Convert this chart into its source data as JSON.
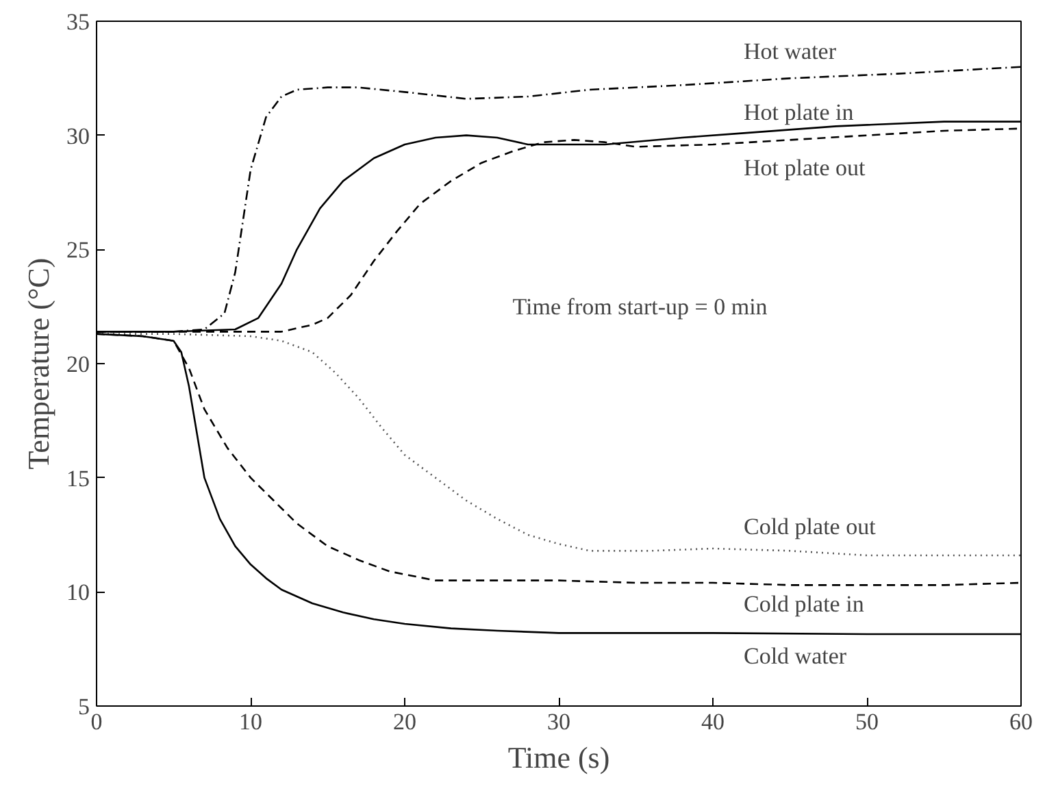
{
  "chart_data": {
    "type": "line",
    "xlabel": "Time (s)",
    "ylabel": "Temperature (°C)",
    "xlim": [
      0,
      60
    ],
    "ylim": [
      5,
      35
    ],
    "xticks": [
      0,
      10,
      20,
      30,
      40,
      50,
      60
    ],
    "yticks": [
      5,
      10,
      15,
      20,
      25,
      30,
      35
    ],
    "grid": false,
    "legend": false,
    "annotations": [
      "Time from start-up = 0 min"
    ],
    "series": [
      {
        "name": "Hot water",
        "color": "#000000",
        "line_style": "dashdot",
        "x": [
          0,
          5,
          7,
          8.3,
          9,
          10,
          11,
          12,
          13,
          15,
          17,
          20,
          24,
          28,
          32,
          38,
          45,
          52,
          60
        ],
        "values": [
          21.4,
          21.4,
          21.5,
          22.2,
          24,
          28.5,
          30.8,
          31.7,
          32,
          32.1,
          32.1,
          31.9,
          31.6,
          31.7,
          32,
          32.2,
          32.5,
          32.7,
          33
        ]
      },
      {
        "name": "Hot plate in",
        "color": "#000000",
        "line_style": "solid",
        "x": [
          0,
          5,
          9,
          10.5,
          12,
          13,
          14.5,
          16,
          18,
          20,
          22,
          24,
          26,
          28,
          33,
          38,
          42,
          48,
          55,
          60
        ],
        "values": [
          21.4,
          21.4,
          21.5,
          22,
          23.5,
          25,
          26.8,
          28,
          29,
          29.6,
          29.9,
          30,
          29.9,
          29.6,
          29.6,
          29.9,
          30.1,
          30.4,
          30.6,
          30.6
        ]
      },
      {
        "name": "Hot plate out",
        "color": "#000000",
        "line_style": "dashed",
        "x": [
          0,
          5,
          12,
          14,
          15,
          16.5,
          18,
          19.5,
          21,
          23,
          25,
          27,
          29,
          31,
          33,
          35,
          40,
          45,
          50,
          55,
          60
        ],
        "values": [
          21.4,
          21.4,
          21.4,
          21.7,
          22,
          23,
          24.5,
          25.8,
          27,
          28,
          28.8,
          29.3,
          29.7,
          29.8,
          29.7,
          29.5,
          29.6,
          29.8,
          30,
          30.2,
          30.3
        ]
      },
      {
        "name": "Cold plate out",
        "color": "#555555",
        "line_style": "dotted",
        "x": [
          0,
          5,
          10,
          12,
          14,
          15.5,
          17,
          18.5,
          20,
          22,
          24,
          26,
          28,
          30,
          32,
          36,
          40,
          45,
          50,
          55,
          60
        ],
        "values": [
          21.3,
          21.3,
          21.2,
          21,
          20.5,
          19.6,
          18.5,
          17.2,
          16,
          15,
          14,
          13.2,
          12.5,
          12.1,
          11.8,
          11.8,
          11.9,
          11.8,
          11.6,
          11.6,
          11.6
        ]
      },
      {
        "name": "Cold plate in",
        "color": "#000000",
        "line_style": "dashed",
        "x": [
          0,
          3,
          5,
          6,
          7,
          8.5,
          10,
          11.5,
          13,
          15,
          17,
          19,
          22,
          26,
          30,
          35,
          40,
          45,
          50,
          55,
          60
        ],
        "values": [
          21.3,
          21.2,
          21,
          19.8,
          18,
          16.3,
          15,
          14,
          13,
          12,
          11.4,
          10.9,
          10.5,
          10.5,
          10.5,
          10.4,
          10.4,
          10.3,
          10.3,
          10.3,
          10.4
        ]
      },
      {
        "name": "Cold water",
        "color": "#000000",
        "line_style": "solid",
        "x": [
          0,
          3,
          5,
          5.5,
          6,
          6.5,
          7,
          8,
          9,
          10,
          11,
          12,
          14,
          16,
          18,
          20,
          23,
          26,
          30,
          40,
          50,
          60
        ],
        "values": [
          21.3,
          21.2,
          21,
          20.5,
          19,
          17,
          15,
          13.2,
          12,
          11.2,
          10.6,
          10.1,
          9.5,
          9.1,
          8.8,
          8.6,
          8.4,
          8.3,
          8.2,
          8.2,
          8.15,
          8.15
        ]
      }
    ]
  }
}
